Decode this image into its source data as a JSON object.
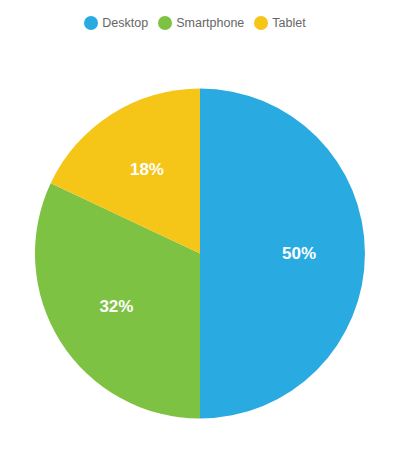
{
  "chart_data": {
    "type": "pie",
    "categories": [
      "Desktop",
      "Smartphone",
      "Tablet"
    ],
    "values": [
      50,
      32,
      18
    ],
    "value_labels": [
      "50%",
      "32%",
      "18%"
    ],
    "colors": [
      "#29ABE2",
      "#7DC242",
      "#F5C518"
    ],
    "data_labels": true,
    "legend": "top"
  }
}
